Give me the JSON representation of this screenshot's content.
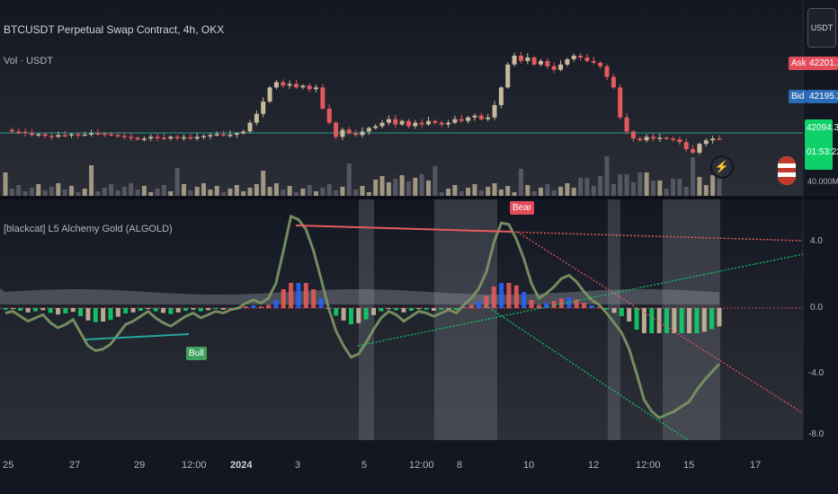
{
  "header": {
    "title": "BTCUSDT Perpetual Swap Contract, 4h, OKX",
    "volume_label": "Vol · USDT",
    "currency_button": "USDT"
  },
  "price_badges": {
    "ask_tag": "Ask",
    "ask_value": "42201.1",
    "bid_tag": "Bid",
    "bid_value": "42195.2",
    "last_value": "42094.3",
    "countdown": "01:53:22",
    "volume_axis_value": "40.000M"
  },
  "indicator": {
    "title": "[blackcat] L5 Alchemy Gold (ALGOLD)",
    "bear_label": "Bear",
    "bull_label": "Bull",
    "y_ticks": [
      "4.0",
      "0.0",
      "-4.0",
      "-8.0"
    ]
  },
  "x_axis": {
    "ticks": [
      "25",
      "27",
      "29",
      "12:00",
      "2024",
      "3",
      "5",
      "12:00",
      "8",
      "10",
      "12",
      "12:00",
      "15",
      "17"
    ]
  },
  "colors": {
    "background": "#131722",
    "up": "#c8b99c",
    "down": "#e35a5d",
    "green": "#26a69a",
    "bright_green": "#0fd16a",
    "red_line": "#f05066",
    "blue": "#2962ff",
    "ask": "#e34d5b",
    "bid": "#2a6bb5"
  },
  "chart_data": [
    {
      "type": "candlestick",
      "title": "BTCUSDT Perpetual Swap Contract, 4h, OKX",
      "x": [
        "25",
        "27",
        "29",
        "12:00",
        "2024",
        "3",
        "5",
        "12:00",
        "8",
        "10",
        "12",
        "12:00",
        "15",
        "17"
      ],
      "last_price": 42094.3,
      "ask": 42201.1,
      "bid": 42195.2,
      "close_series": [
        42600,
        42500,
        42480,
        42400,
        42300,
        42350,
        42250,
        42200,
        42300,
        42280,
        42350,
        42320,
        42330,
        42400,
        42380,
        42350,
        42300,
        42250,
        42200,
        42150,
        42050,
        42100,
        42200,
        42150,
        42100,
        42200,
        42150,
        42180,
        42100,
        42200,
        42250,
        42300,
        42350,
        42300,
        42320,
        42400,
        42500,
        43000,
        43500,
        44200,
        45000,
        45300,
        45100,
        45200,
        45000,
        45100,
        44900,
        45000,
        43800,
        43000,
        42200,
        42600,
        42400,
        42300,
        42500,
        42700,
        42800,
        43000,
        43200,
        42900,
        43100,
        42800,
        43000,
        42900,
        43100,
        43000,
        42900,
        43000,
        43200,
        43100,
        43300,
        43400,
        43200,
        43300,
        44000,
        45000,
        46300,
        46800,
        46500,
        46700,
        46300,
        46500,
        46200,
        46000,
        46300,
        46600,
        46800,
        46700,
        46500,
        46400,
        46200,
        45600,
        45000,
        43300,
        42500,
        42100,
        42000,
        42200,
        42100,
        42150,
        42100,
        42050,
        41900,
        41500,
        41300,
        41800,
        42000,
        42100,
        42094
      ]
    },
    {
      "type": "bar",
      "title": "Vol · USDT",
      "y_axis_value": "40.000M"
    },
    {
      "type": "line",
      "title": "[blackcat] L5 Alchemy Gold (ALGOLD)",
      "y_ticks": [
        4.0,
        0.0,
        -4.0,
        -8.0
      ],
      "ylim": [
        -8.5,
        6.8
      ],
      "series": [
        {
          "name": "",
          "values": [
            -0.3,
            -0.2,
            -0.5,
            -0.8,
            -0.6,
            -0.4,
            -0.9,
            -1.2,
            -1.0,
            -0.7,
            -1.5,
            -2.3,
            -2.6,
            -2.5,
            -2.2,
            -1.6,
            -1.0,
            -0.8,
            -0.5,
            -0.2,
            -0.6,
            -0.9,
            -1.1,
            -0.8,
            -0.5,
            -0.3,
            -0.6,
            -0.4,
            -0.2,
            -0.3,
            -0.1,
            0.0,
            0.3,
            0.5,
            0.3,
            0.6,
            1.5,
            3.5,
            5.6,
            5.4,
            4.8,
            3.5,
            1.8,
            0.0,
            -1.4,
            -2.3,
            -3.0,
            -2.8,
            -2.1,
            -1.3,
            -0.6,
            -0.2,
            -0.4,
            -0.8,
            -0.5,
            -0.2,
            -0.3,
            -0.5,
            -0.3,
            -0.1,
            -0.3,
            0.2,
            0.6,
            1.2,
            2.2,
            4.0,
            5.2,
            5.1,
            4.2,
            3.0,
            1.5,
            0.6,
            0.9,
            1.3,
            1.8,
            2.0,
            1.6,
            1.0,
            0.5,
            0.2,
            -0.3,
            -0.9,
            -1.5,
            -2.5,
            -4.0,
            -5.6,
            -6.3,
            -6.7,
            -6.5,
            -6.3,
            -6.0,
            -5.7,
            -5.0,
            -4.4,
            -3.9,
            -3.4
          ]
        }
      ]
    }
  ]
}
